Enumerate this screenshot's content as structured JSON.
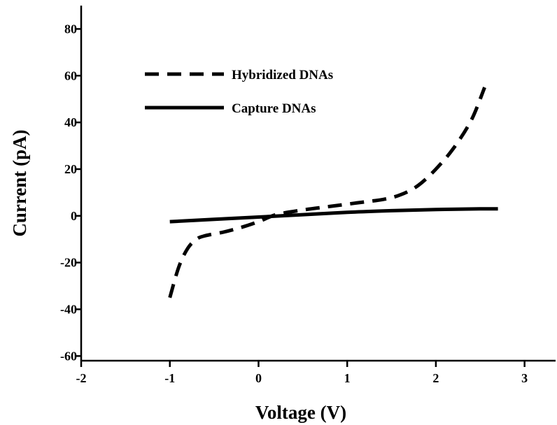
{
  "chart_data": {
    "type": "line",
    "title": "",
    "xlabel": "Voltage (V)",
    "ylabel": "Current (pA)",
    "xlim": [
      -2,
      3.35
    ],
    "ylim": [
      -62,
      90
    ],
    "x_ticks": [
      -2,
      -1,
      0,
      1,
      2,
      3
    ],
    "x_tick_labels": [
      "-2",
      "-1",
      "0",
      "1",
      "2",
      "3"
    ],
    "y_ticks": [
      -60,
      -40,
      -20,
      0,
      20,
      40,
      60,
      80
    ],
    "y_tick_labels": [
      "-60",
      "-40",
      "-20",
      "0",
      "20",
      "40",
      "60",
      "80"
    ],
    "grid": false,
    "legend_position": "top-left",
    "series": [
      {
        "name": "Hybridized DNAs",
        "style": "dashed",
        "color": "#000000",
        "points": [
          [
            -1.0,
            -35
          ],
          [
            -0.9,
            -22
          ],
          [
            -0.8,
            -14
          ],
          [
            -0.7,
            -10
          ],
          [
            -0.6,
            -8.5
          ],
          [
            -0.4,
            -7
          ],
          [
            -0.2,
            -5
          ],
          [
            0.0,
            -2.5
          ],
          [
            0.2,
            0.5
          ],
          [
            0.5,
            2.5
          ],
          [
            0.8,
            4
          ],
          [
            1.1,
            5.5
          ],
          [
            1.4,
            7
          ],
          [
            1.6,
            9
          ],
          [
            1.8,
            13
          ],
          [
            2.0,
            20
          ],
          [
            2.2,
            29
          ],
          [
            2.4,
            41
          ],
          [
            2.55,
            55
          ]
        ]
      },
      {
        "name": "Capture DNAs",
        "style": "solid",
        "color": "#000000",
        "points": [
          [
            -1.0,
            -2.5
          ],
          [
            -0.5,
            -1.5
          ],
          [
            0.0,
            -0.5
          ],
          [
            0.5,
            0.5
          ],
          [
            1.0,
            1.5
          ],
          [
            1.5,
            2.2
          ],
          [
            2.0,
            2.7
          ],
          [
            2.5,
            3.0
          ],
          [
            2.7,
            3.0
          ]
        ]
      }
    ]
  }
}
